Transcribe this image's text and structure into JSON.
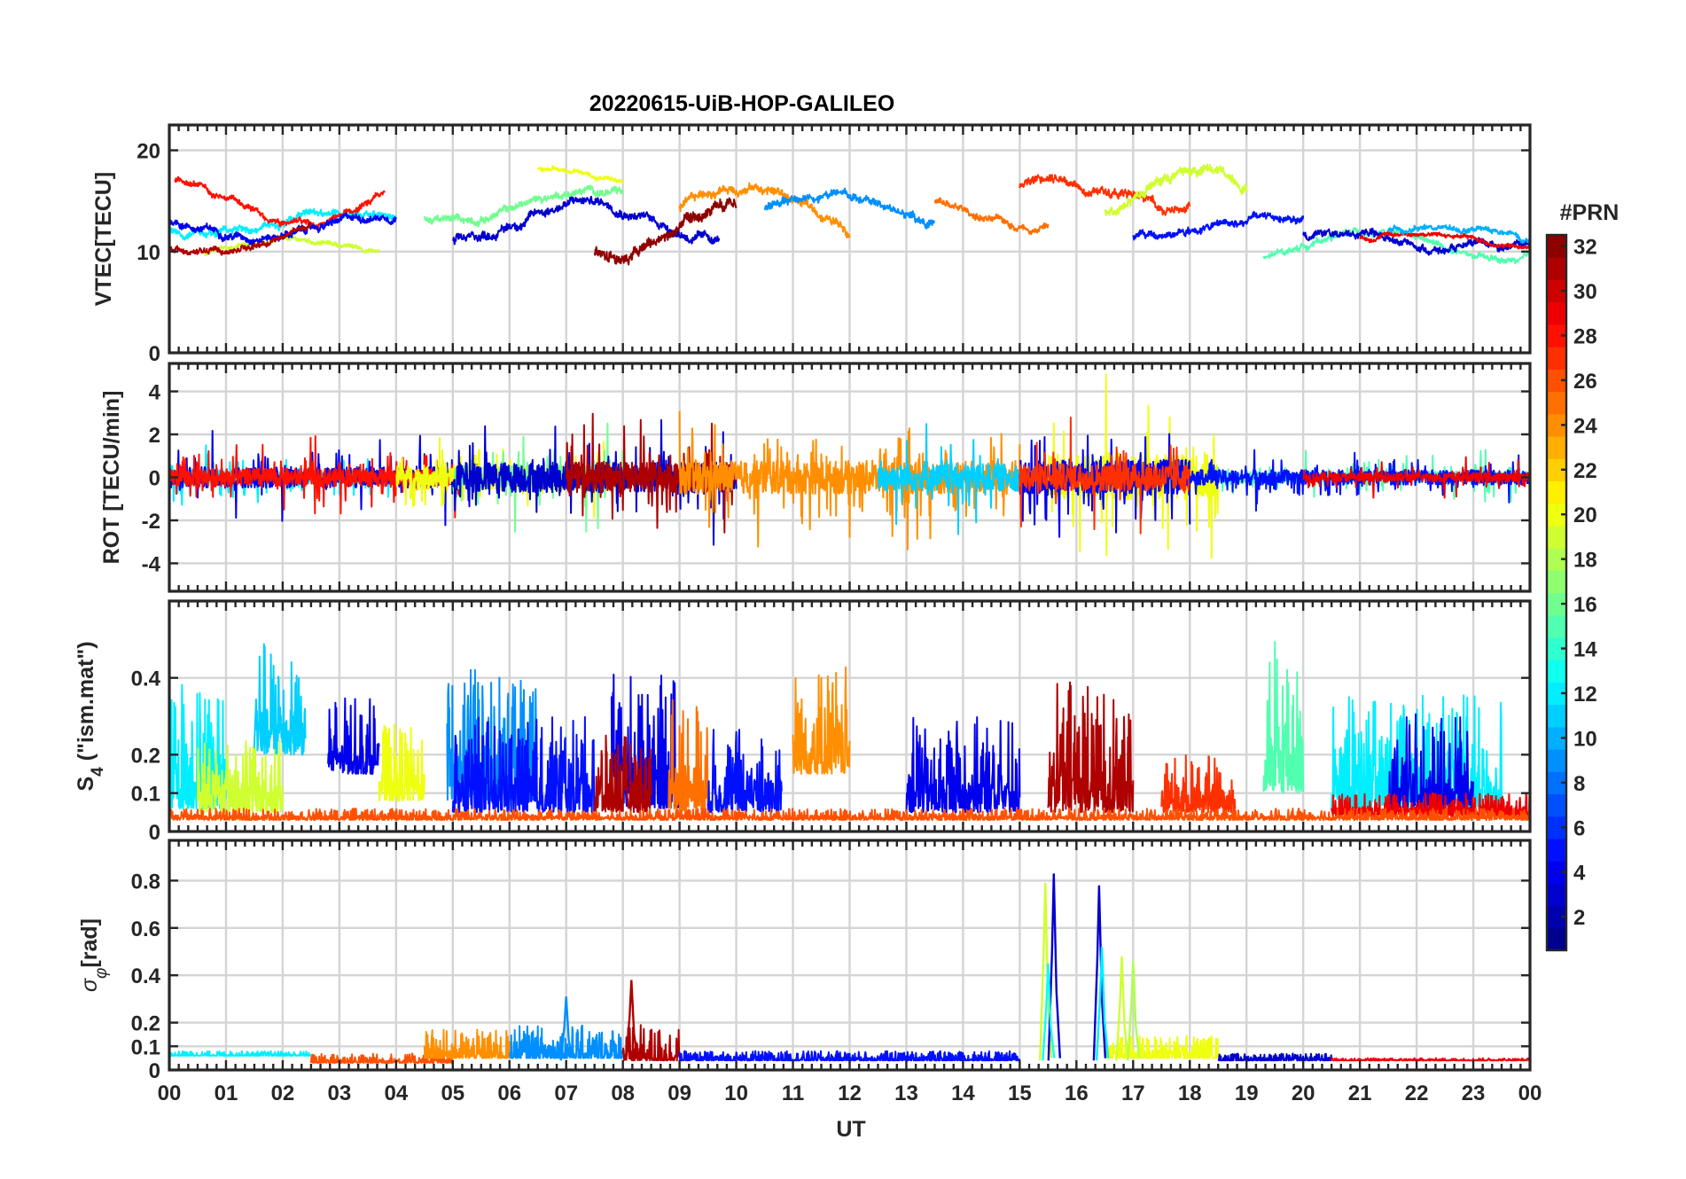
{
  "chart_data": {
    "type": "line",
    "title": "20220615-UiB-HOP-GALILEO",
    "xlabel": "UT",
    "x_tick_labels": [
      "00",
      "01",
      "02",
      "03",
      "04",
      "05",
      "06",
      "07",
      "08",
      "09",
      "10",
      "11",
      "12",
      "13",
      "14",
      "15",
      "16",
      "17",
      "18",
      "19",
      "20",
      "21",
      "22",
      "23",
      "00"
    ],
    "xlim": [
      0,
      24
    ],
    "colorbar": {
      "label": "#PRN",
      "range": [
        1,
        32
      ],
      "tick_labels": [
        "2",
        "4",
        "6",
        "8",
        "10",
        "12",
        "14",
        "16",
        "18",
        "20",
        "22",
        "24",
        "26",
        "28",
        "30",
        "32"
      ],
      "colormap": "jet"
    },
    "panels": [
      {
        "id": "vtec",
        "ylabel": "VTEC[TECU]",
        "ylim": [
          0,
          22.5
        ],
        "y_tick_labels": [
          "0",
          "10",
          "20"
        ],
        "y_ticks": [
          0,
          10,
          20
        ],
        "series": [
          {
            "prn": 12,
            "start": 0.0,
            "end": 4.0,
            "base": 12.8,
            "amp": 1.2,
            "noise": 0.5
          },
          {
            "prn": 19,
            "start": 0.6,
            "end": 3.7,
            "base": 10.3,
            "amp": 0.7,
            "noise": 0.3
          },
          {
            "prn": 28,
            "start": 0.1,
            "end": 3.8,
            "base": 14.8,
            "amp": 2.2,
            "noise": 0.4
          },
          {
            "prn": 4,
            "start": 0.0,
            "end": 4.0,
            "base": 12.6,
            "amp": 1.0,
            "noise": 0.5
          },
          {
            "prn": 31,
            "start": 0.0,
            "end": 2.5,
            "base": 11.5,
            "amp": 1.5,
            "noise": 0.4
          },
          {
            "prn": 16,
            "start": 4.5,
            "end": 8.0,
            "base": 14.5,
            "amp": 1.5,
            "noise": 0.5
          },
          {
            "prn": 20,
            "start": 6.5,
            "end": 8.0,
            "base": 17.0,
            "amp": 1.2,
            "noise": 0.3
          },
          {
            "prn": 3,
            "start": 5.0,
            "end": 9.7,
            "base": 13.0,
            "amp": 2.0,
            "noise": 0.6
          },
          {
            "prn": 32,
            "start": 7.5,
            "end": 10.0,
            "base": 12.0,
            "amp": 2.0,
            "noise": 0.8
          },
          {
            "prn": 24,
            "start": 9.0,
            "end": 12.0,
            "base": 14.0,
            "amp": 2.5,
            "noise": 0.6
          },
          {
            "prn": 9,
            "start": 10.5,
            "end": 13.5,
            "base": 14.0,
            "amp": 1.5,
            "noise": 0.6
          },
          {
            "prn": 25,
            "start": 13.5,
            "end": 15.5,
            "base": 14.0,
            "amp": 1.5,
            "noise": 0.5
          },
          {
            "prn": 27,
            "start": 15.0,
            "end": 18.0,
            "base": 15.5,
            "amp": 1.5,
            "noise": 0.6
          },
          {
            "prn": 19,
            "start": 16.5,
            "end": 19.0,
            "base": 15.5,
            "amp": 2.5,
            "noise": 0.7
          },
          {
            "prn": 5,
            "start": 17.0,
            "end": 20.0,
            "base": 12.5,
            "amp": 1.0,
            "noise": 0.5
          },
          {
            "prn": 15,
            "start": 19.3,
            "end": 24.0,
            "base": 10.5,
            "amp": 1.5,
            "noise": 0.4
          },
          {
            "prn": 3,
            "start": 20.0,
            "end": 24.0,
            "base": 11.0,
            "amp": 0.8,
            "noise": 0.5
          },
          {
            "prn": 29,
            "start": 21.0,
            "end": 24.0,
            "base": 11.0,
            "amp": 0.8,
            "noise": 0.3
          },
          {
            "prn": 10,
            "start": 21.5,
            "end": 24.0,
            "base": 11.8,
            "amp": 0.6,
            "noise": 0.4
          }
        ]
      },
      {
        "id": "rot",
        "ylabel": "ROT [TECU/min]",
        "ylim": [
          -5.3,
          5.3
        ],
        "y_tick_labels": [
          "-4",
          "-2",
          "0",
          "2",
          "4"
        ],
        "y_ticks": [
          -4,
          -2,
          0,
          2,
          4
        ],
        "series": [
          {
            "prn": 12,
            "start": 0.0,
            "end": 4.0,
            "amp": 0.5
          },
          {
            "prn": 4,
            "start": 0.0,
            "end": 5.0,
            "amp": 0.7
          },
          {
            "prn": 28,
            "start": 0.0,
            "end": 5.5,
            "amp": 0.6
          },
          {
            "prn": 20,
            "start": 4.0,
            "end": 8.0,
            "amp": 0.8
          },
          {
            "prn": 16,
            "start": 5.0,
            "end": 8.0,
            "amp": 0.8
          },
          {
            "prn": 3,
            "start": 5.0,
            "end": 10.0,
            "amp": 1.0
          },
          {
            "prn": 31,
            "start": 7.0,
            "end": 10.0,
            "amp": 1.0
          },
          {
            "prn": 24,
            "start": 9.0,
            "end": 15.0,
            "amp": 1.1
          },
          {
            "prn": 11,
            "start": 12.5,
            "end": 15.0,
            "amp": 0.9
          },
          {
            "prn": 20,
            "start": 15.5,
            "end": 18.5,
            "amp": 1.5
          },
          {
            "prn": 4,
            "start": 15.0,
            "end": 18.0,
            "amp": 1.2
          },
          {
            "prn": 27,
            "start": 15.0,
            "end": 18.0,
            "amp": 0.9
          },
          {
            "prn": 15,
            "start": 18.5,
            "end": 24.0,
            "amp": 0.4
          },
          {
            "prn": 5,
            "start": 18.0,
            "end": 24.0,
            "amp": 0.5
          },
          {
            "prn": 29,
            "start": 20.0,
            "end": 24.0,
            "amp": 0.3
          }
        ]
      },
      {
        "id": "s4",
        "ylabel": "S4 (\"ism.mat\")",
        "ylabel_main": "S",
        "ylabel_sub": "4",
        "ylabel_rest": " (\"ism.mat\")",
        "ylim": [
          0,
          0.6
        ],
        "y_tick_labels": [
          "0",
          "0.1",
          "0.2",
          "0.4"
        ],
        "y_ticks": [
          0,
          0.1,
          0.2,
          0.4
        ],
        "series": [
          {
            "prn": 12,
            "start": 0.0,
            "end": 1.0,
            "base": 0.06,
            "amp": 0.35
          },
          {
            "prn": 19,
            "start": 0.5,
            "end": 2.0,
            "base": 0.05,
            "amp": 0.2
          },
          {
            "prn": 11,
            "start": 1.5,
            "end": 2.4,
            "base": 0.2,
            "amp": 0.3
          },
          {
            "prn": 4,
            "start": 2.8,
            "end": 3.7,
            "base": 0.15,
            "amp": 0.2
          },
          {
            "prn": 20,
            "start": 3.7,
            "end": 4.5,
            "base": 0.08,
            "amp": 0.2
          },
          {
            "prn": 9,
            "start": 4.9,
            "end": 6.5,
            "base": 0.08,
            "amp": 0.35
          },
          {
            "prn": 5,
            "start": 5.0,
            "end": 7.5,
            "base": 0.05,
            "amp": 0.25
          },
          {
            "prn": 4,
            "start": 7.8,
            "end": 9.0,
            "base": 0.06,
            "amp": 0.35
          },
          {
            "prn": 31,
            "start": 7.5,
            "end": 8.5,
            "base": 0.05,
            "amp": 0.2
          },
          {
            "prn": 25,
            "start": 8.8,
            "end": 9.5,
            "base": 0.05,
            "amp": 0.3
          },
          {
            "prn": 5,
            "start": 9.5,
            "end": 10.8,
            "base": 0.05,
            "amp": 0.22
          },
          {
            "prn": 24,
            "start": 11.0,
            "end": 12.0,
            "base": 0.15,
            "amp": 0.28
          },
          {
            "prn": 4,
            "start": 13.0,
            "end": 15.0,
            "base": 0.05,
            "amp": 0.25
          },
          {
            "prn": 31,
            "start": 15.5,
            "end": 17.0,
            "base": 0.05,
            "amp": 0.35
          },
          {
            "prn": 27,
            "start": 17.5,
            "end": 18.8,
            "base": 0.05,
            "amp": 0.15
          },
          {
            "prn": 15,
            "start": 19.3,
            "end": 20.0,
            "base": 0.1,
            "amp": 0.4
          },
          {
            "prn": 12,
            "start": 20.5,
            "end": 23.5,
            "base": 0.06,
            "amp": 0.3
          },
          {
            "prn": 4,
            "start": 21.5,
            "end": 23.0,
            "base": 0.06,
            "amp": 0.25
          },
          {
            "prn": 29,
            "start": 20.5,
            "end": 24.0,
            "base": 0.04,
            "amp": 0.06
          },
          {
            "prn": 26,
            "start": 0.0,
            "end": 24.0,
            "base": 0.03,
            "amp": 0.03
          }
        ]
      },
      {
        "id": "sigma",
        "ylabel": "σφ[rad]",
        "ylabel_main": "σ",
        "ylabel_sub": "φ",
        "ylabel_rest": "[rad]",
        "ylim": [
          0,
          0.97
        ],
        "y_tick_labels": [
          "0",
          "0.1",
          "0.2",
          "0.4",
          "0.6",
          "0.8"
        ],
        "y_ticks": [
          0,
          0.1,
          0.2,
          0.4,
          0.6,
          0.8
        ],
        "series": [
          {
            "prn": 12,
            "start": 0.0,
            "end": 2.5,
            "base": 0.06,
            "amp": 0.02
          },
          {
            "prn": 26,
            "start": 2.5,
            "end": 5.0,
            "base": 0.03,
            "amp": 0.04
          },
          {
            "prn": 24,
            "start": 4.5,
            "end": 6.0,
            "base": 0.05,
            "amp": 0.12
          },
          {
            "prn": 9,
            "start": 6.0,
            "end": 8.0,
            "base": 0.05,
            "amp": 0.14
          },
          {
            "prn": 31,
            "start": 8.0,
            "end": 9.0,
            "base": 0.04,
            "amp": 0.15
          },
          {
            "prn": 5,
            "start": 9.0,
            "end": 15.0,
            "base": 0.04,
            "amp": 0.04
          },
          {
            "prn": 20,
            "start": 16.5,
            "end": 18.5,
            "base": 0.05,
            "amp": 0.1
          },
          {
            "prn": 3,
            "start": 18.5,
            "end": 20.5,
            "base": 0.04,
            "amp": 0.03
          },
          {
            "prn": 29,
            "start": 20.5,
            "end": 24.0,
            "base": 0.04,
            "amp": 0.01
          }
        ],
        "spikes": [
          {
            "prn": 19,
            "x": 15.45,
            "y": 0.79
          },
          {
            "prn": 3,
            "x": 15.6,
            "y": 0.83
          },
          {
            "prn": 13,
            "x": 15.5,
            "y": 0.45
          },
          {
            "prn": 3,
            "x": 16.4,
            "y": 0.78
          },
          {
            "prn": 12,
            "x": 16.45,
            "y": 0.52
          },
          {
            "prn": 19,
            "x": 16.8,
            "y": 0.48
          },
          {
            "prn": 18,
            "x": 17.0,
            "y": 0.46
          },
          {
            "prn": 31,
            "x": 8.15,
            "y": 0.38
          },
          {
            "prn": 9,
            "x": 7.0,
            "y": 0.31
          }
        ]
      }
    ]
  }
}
